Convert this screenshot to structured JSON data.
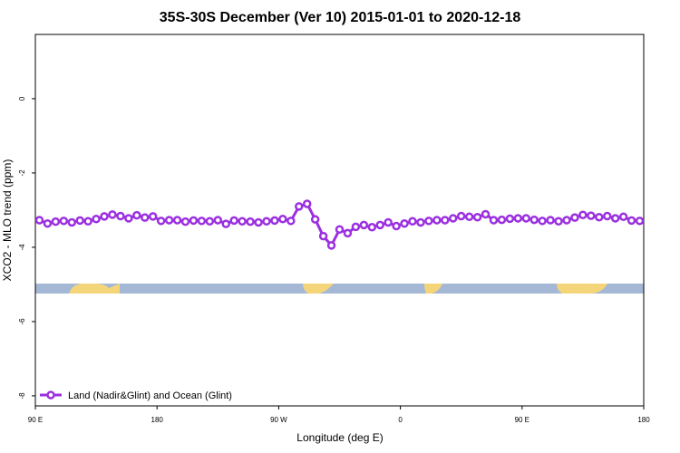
{
  "chart_data": {
    "type": "line",
    "title": "35S-30S December (Ver 10)   2015-01-01 to 2020-12-18",
    "x_label": "Longitude (deg E)",
    "y_label": "XCO2 - MLO trend (ppm)",
    "xlim": [
      90,
      540
    ],
    "ylim": [
      -8.27,
      1.73
    ],
    "xticks": [
      {
        "value": 90,
        "label": "90 E"
      },
      180,
      {
        "value": 270,
        "label": "90 W"
      },
      {
        "value": 360,
        "label": "0"
      },
      {
        "value": 450,
        "label": "90 E"
      },
      {
        "value": 540,
        "label": "180"
      }
    ],
    "yticks": [
      -8,
      -6,
      -4,
      -2,
      0
    ],
    "grid": false,
    "legend_position": "bottom-left",
    "x": [
      93,
      99,
      105,
      111,
      117,
      123,
      129,
      135,
      141,
      147,
      153,
      159,
      165,
      171,
      177,
      183,
      189,
      195,
      201,
      207,
      213,
      219,
      225,
      231,
      237,
      243,
      249,
      255,
      261,
      267,
      273,
      279,
      285,
      291,
      297,
      303,
      309,
      315,
      321,
      327,
      333,
      339,
      345,
      351,
      357,
      363,
      369,
      375,
      381,
      387,
      393,
      399,
      405,
      411,
      417,
      423,
      429,
      435,
      441,
      447,
      453,
      459,
      465,
      471,
      477,
      483,
      489,
      495,
      501,
      507,
      513,
      519,
      525,
      531,
      537
    ],
    "series": [
      {
        "name": "Land (Nadir&Glint) and Ocean (Glint)",
        "color": "#9b30e0",
        "values": [
          -3.27,
          -3.36,
          -3.31,
          -3.29,
          -3.33,
          -3.28,
          -3.3,
          -3.24,
          -3.17,
          -3.12,
          -3.16,
          -3.22,
          -3.14,
          -3.2,
          -3.17,
          -3.29,
          -3.27,
          -3.27,
          -3.31,
          -3.28,
          -3.29,
          -3.3,
          -3.27,
          -3.37,
          -3.28,
          -3.3,
          -3.31,
          -3.33,
          -3.3,
          -3.28,
          -3.24,
          -3.29,
          -2.9,
          -2.83,
          -3.25,
          -3.7,
          -3.95,
          -3.52,
          -3.62,
          -3.45,
          -3.4,
          -3.46,
          -3.4,
          -3.33,
          -3.43,
          -3.36,
          -3.3,
          -3.33,
          -3.29,
          -3.27,
          -3.27,
          -3.22,
          -3.16,
          -3.18,
          -3.19,
          -3.11,
          -3.27,
          -3.26,
          -3.23,
          -3.22,
          -3.22,
          -3.26,
          -3.29,
          -3.27,
          -3.3,
          -3.27,
          -3.2,
          -3.13,
          -3.15,
          -3.19,
          -3.16,
          -3.22,
          -3.18,
          -3.28,
          -3.29
        ]
      }
    ]
  }
}
